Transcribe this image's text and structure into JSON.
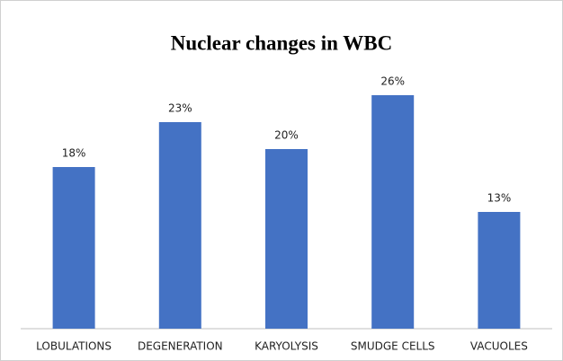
{
  "chart_data": {
    "type": "bar",
    "title": "Nuclear changes in WBC",
    "categories": [
      "LOBULATIONS",
      "DEGENERATION",
      "KARYOLYSIS",
      "SMUDGE CELLS",
      "VACUOLES"
    ],
    "values": [
      18,
      23,
      20,
      26,
      13
    ],
    "value_labels": [
      "18%",
      "23%",
      "20%",
      "26%",
      "13%"
    ],
    "color": "#4472c4",
    "ylim": [
      0,
      30
    ]
  }
}
